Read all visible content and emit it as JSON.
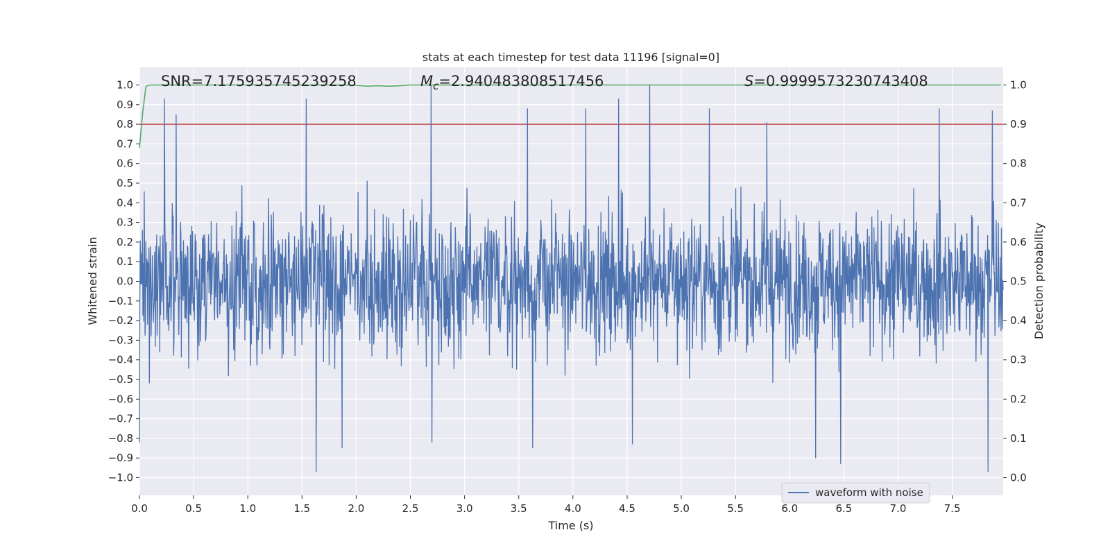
{
  "chart_data": {
    "type": "line",
    "title": "stats at each timestep for test data 11196 [signal=0]",
    "xlabel": "Time (s)",
    "ylabel_left": "Whitened strain",
    "ylabel_right": "Detection probability",
    "xlim": [
      0.0,
      7.97
    ],
    "ylim_left": [
      -1.09,
      1.09
    ],
    "ylim_right": [
      -0.045,
      1.045
    ],
    "x_ticks": [
      0.0,
      0.5,
      1.0,
      1.5,
      2.0,
      2.5,
      3.0,
      3.5,
      4.0,
      4.5,
      5.0,
      5.5,
      6.0,
      6.5,
      7.0,
      7.5
    ],
    "x_tick_labels": [
      "0.0",
      "0.5",
      "1.0",
      "1.5",
      "2.0",
      "2.5",
      "3.0",
      "3.5",
      "4.0",
      "4.5",
      "5.0",
      "5.5",
      "6.0",
      "6.5",
      "7.0",
      "7.5"
    ],
    "left_ticks": [
      1.0,
      0.9,
      0.8,
      0.7,
      0.6,
      0.5,
      0.4,
      0.3,
      0.2,
      0.1,
      0.0,
      -0.1,
      -0.2,
      -0.3,
      -0.4,
      -0.5,
      -0.6,
      -0.7,
      -0.8,
      -0.9,
      -1.0
    ],
    "left_tick_labels": [
      "1.0",
      "0.9",
      "0.8",
      "0.7",
      "0.6",
      "0.5",
      "0.4",
      "0.3",
      "0.2",
      "0.1",
      "0.0",
      "−0.1",
      "−0.2",
      "−0.3",
      "−0.4",
      "−0.5",
      "−0.6",
      "−0.7",
      "−0.8",
      "−0.9",
      "−1.0"
    ],
    "right_ticks": [
      1.0,
      0.9,
      0.8,
      0.7,
      0.6,
      0.5,
      0.4,
      0.3,
      0.2,
      0.1,
      0.0
    ],
    "right_tick_labels": [
      "1.0",
      "0.9",
      "0.8",
      "0.7",
      "0.6",
      "0.5",
      "0.4",
      "0.3",
      "0.2",
      "0.1",
      "0.0"
    ],
    "annotations": {
      "snr": "SNR=7.175935745239258",
      "mc_symbol": "M",
      "mc_subscript": "c",
      "mc_value": "=2.940483808517456",
      "s_symbol": "S",
      "s_value": "=0.9999573230743408"
    },
    "threshold": {
      "axis": "right",
      "value": 0.9,
      "color": "#c44e52"
    },
    "series": [
      {
        "name": "waveform with noise",
        "axis": "left",
        "color": "#4c72b0",
        "note": "dense noise waveform, approx. range -0.98 to 1.0",
        "peaks_x": [
          0.23,
          0.34,
          1.54,
          2.69,
          3.58,
          4.12,
          4.42,
          4.71,
          5.26,
          5.79,
          7.38,
          7.87
        ],
        "peaks_y": [
          0.93,
          0.85,
          0.93,
          1.0,
          0.88,
          0.88,
          0.93,
          1.0,
          0.88,
          0.81,
          0.88,
          0.87
        ],
        "troughs_x": [
          0.0,
          1.63,
          1.87,
          2.7,
          3.63,
          4.55,
          6.24,
          6.47,
          7.83
        ],
        "troughs_y": [
          -0.82,
          -0.97,
          -0.85,
          -0.82,
          -0.85,
          -0.83,
          -0.9,
          -0.93,
          -0.97
        ]
      },
      {
        "axis": "right",
        "color": "#55a868",
        "x": [
          0.0,
          0.03,
          0.06,
          0.1,
          0.15,
          0.3,
          0.6,
          1.0,
          1.5,
          1.9,
          2.0,
          2.1,
          2.2,
          2.3,
          2.4,
          2.5,
          3.0,
          4.0,
          5.0,
          6.0,
          7.0,
          7.95
        ],
        "y": [
          0.84,
          0.93,
          0.997,
          1.0,
          1.0,
          1.0,
          1.0,
          1.0,
          1.0,
          1.0,
          0.999,
          0.997,
          0.998,
          0.997,
          0.998,
          1.0,
          1.0,
          1.0,
          1.0,
          1.0,
          1.0,
          1.0
        ]
      }
    ],
    "legend": {
      "position": "lower-right",
      "entries": [
        "waveform with noise"
      ]
    },
    "grid": true
  }
}
